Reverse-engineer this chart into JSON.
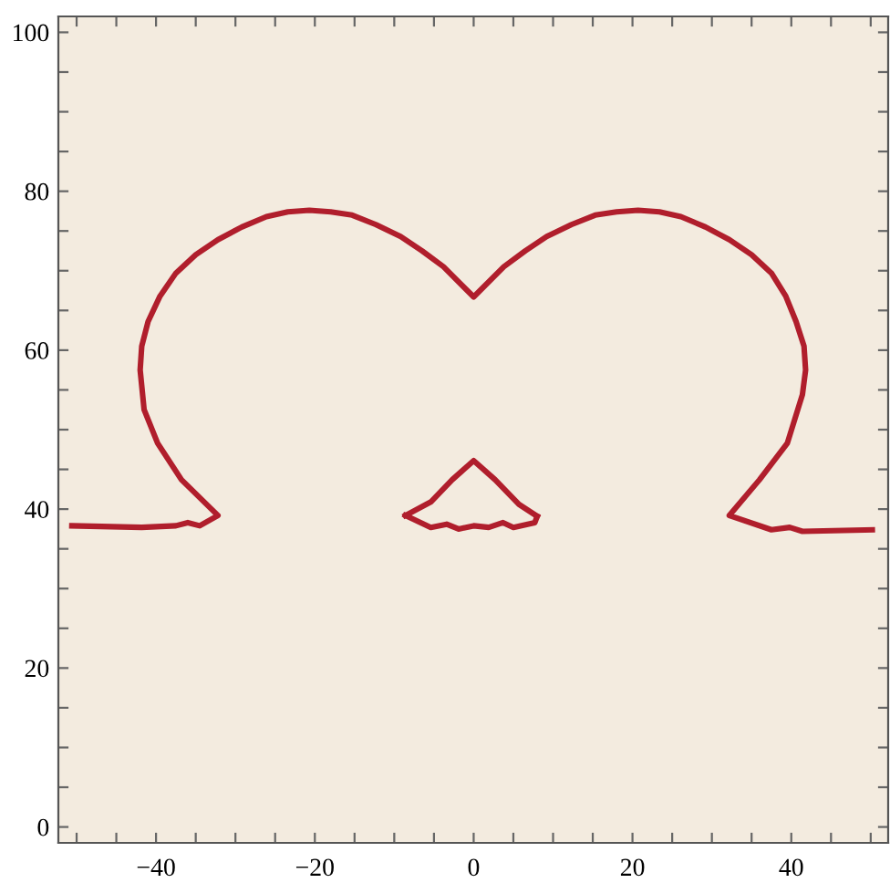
{
  "chart_data": {
    "type": "line",
    "xlim": [
      -52.3,
      52.2
    ],
    "ylim": [
      -2,
      102
    ],
    "xticks": [
      {
        "value": -50,
        "label": null
      },
      {
        "value": -45,
        "label": null
      },
      {
        "value": -40,
        "label": "−40"
      },
      {
        "value": -35,
        "label": null
      },
      {
        "value": -30,
        "label": null
      },
      {
        "value": -25,
        "label": null
      },
      {
        "value": -20,
        "label": "−20"
      },
      {
        "value": -15,
        "label": null
      },
      {
        "value": -10,
        "label": null
      },
      {
        "value": -5,
        "label": null
      },
      0,
      {
        "value": 5,
        "label": null
      },
      {
        "value": 10,
        "label": null
      },
      {
        "value": 15,
        "label": null
      },
      20,
      {
        "value": 25,
        "label": null
      },
      {
        "value": 30,
        "label": null
      },
      {
        "value": 35,
        "label": null
      },
      40,
      {
        "value": 45,
        "label": null
      },
      {
        "value": 50,
        "label": null
      }
    ],
    "yticks": [
      0,
      {
        "value": 5,
        "label": null
      },
      {
        "value": 10,
        "label": null
      },
      {
        "value": 15,
        "label": null
      },
      20,
      {
        "value": 25,
        "label": null
      },
      {
        "value": 30,
        "label": null
      },
      {
        "value": 35,
        "label": null
      },
      40,
      {
        "value": 45,
        "label": null
      },
      {
        "value": 50,
        "label": null
      },
      {
        "value": 55,
        "label": null
      },
      60,
      {
        "value": 65,
        "label": null
      },
      {
        "value": 70,
        "label": null
      },
      {
        "value": 75,
        "label": null
      },
      80,
      {
        "value": 85,
        "label": null
      },
      {
        "value": 90,
        "label": null
      },
      {
        "value": 95,
        "label": null
      },
      100
    ],
    "grid": false,
    "marker": "none",
    "line_style": "solid",
    "series": [
      {
        "color": "#b01e2c",
        "x": [
          -50.6,
          -41.8,
          -37.5,
          -36.0,
          -34.5,
          -32.2,
          -36.8,
          -39.8,
          -41.5,
          -42.0,
          -41.8,
          -41.0,
          -39.5,
          -37.5,
          -35.0,
          -32.2,
          -29.2,
          -26.1,
          -23.4,
          -20.7,
          -18.0,
          -15.3,
          -12.3,
          -9.2,
          -6.5,
          -3.8,
          0,
          3.8,
          6.5,
          9.2,
          12.3,
          15.3,
          18.0,
          20.7,
          23.4,
          26.1,
          29.2,
          32.2,
          35.0,
          37.5,
          39.3,
          40.6,
          41.6,
          41.8,
          41.4,
          39.5,
          36.0,
          32.2,
          37.5,
          39.8,
          41.4,
          50.2
        ],
        "values": [
          37.9,
          37.7,
          37.9,
          38.3,
          37.9,
          39.2,
          43.7,
          48.3,
          52.5,
          57.5,
          60.5,
          63.6,
          66.8,
          69.7,
          72.0,
          73.9,
          75.5,
          76.8,
          77.4,
          77.6,
          77.4,
          77.0,
          75.8,
          74.3,
          72.5,
          70.5,
          66.7,
          70.5,
          72.5,
          74.3,
          75.8,
          77.0,
          77.4,
          77.6,
          77.4,
          76.8,
          75.5,
          73.9,
          72.0,
          69.7,
          66.8,
          63.6,
          60.5,
          57.5,
          54.4,
          48.3,
          43.7,
          39.2,
          37.4,
          37.7,
          37.2,
          37.4
        ]
      },
      {
        "color": "#b01e2c",
        "x": [
          -8.6,
          -5.4,
          -2.7,
          0,
          2.7,
          5.7,
          8.0
        ],
        "values": [
          39.2,
          40.9,
          43.7,
          46.1,
          43.7,
          40.6,
          39.1
        ]
      },
      {
        "color": "#b01e2c",
        "x": [
          -8.6,
          -5.4,
          -3.4,
          -1.9,
          0,
          1.9,
          3.7,
          5.0,
          7.7,
          8.0
        ],
        "values": [
          39.2,
          37.7,
          38.1,
          37.5,
          37.9,
          37.7,
          38.3,
          37.7,
          38.3,
          39.1
        ]
      }
    ]
  }
}
